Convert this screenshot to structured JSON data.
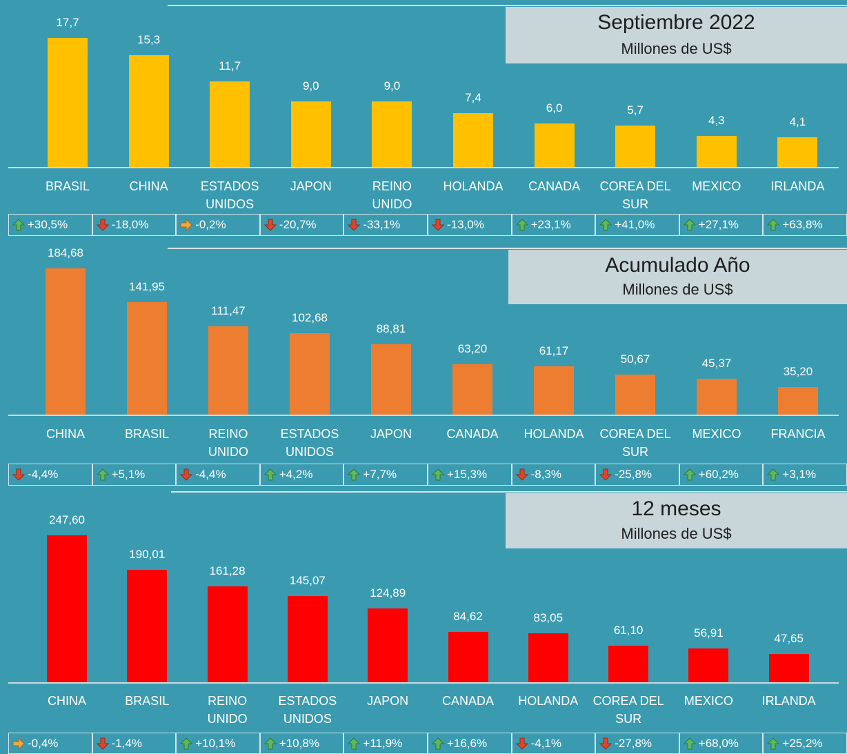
{
  "chart_data": [
    {
      "type": "bar",
      "title": "Septiembre 2022",
      "subtitle": "Millones de US$",
      "categories": [
        "BRASIL",
        "CHINA",
        "ESTADOS UNIDOS",
        "JAPON",
        "REINO UNIDO",
        "HOLANDA",
        "CANADA",
        "COREA DEL SUR",
        "MEXICO",
        "IRLANDA"
      ],
      "values": [
        17.7,
        15.3,
        11.7,
        9.0,
        9.0,
        7.4,
        6.0,
        5.7,
        4.3,
        4.1
      ],
      "value_labels": [
        "17,7",
        "15,3",
        "11,7",
        "9,0",
        "9,0",
        "7,4",
        "6,0",
        "5,7",
        "4,3",
        "4,1"
      ],
      "color": "#ffc000",
      "changes": [
        30.5,
        -18.0,
        -0.2,
        -20.7,
        -33.1,
        -13.0,
        23.1,
        41.0,
        27.1,
        63.8
      ],
      "change_labels": [
        "+30,5%",
        "-18,0%",
        "-0,2%",
        "-20,7%",
        "-33,1%",
        "-13,0%",
        "+23,1%",
        "+41,0%",
        "+27,1%",
        "+63,8%"
      ],
      "change_trends": [
        "up",
        "down",
        "flat",
        "down",
        "down",
        "down",
        "up",
        "up",
        "up",
        "up"
      ]
    },
    {
      "type": "bar",
      "title": "Acumulado Año",
      "subtitle": "Millones de US$",
      "categories": [
        "CHINA",
        "BRASIL",
        "REINO UNIDO",
        "ESTADOS UNIDOS",
        "JAPON",
        "CANADA",
        "HOLANDA",
        "COREA DEL SUR",
        "MEXICO",
        "FRANCIA"
      ],
      "values": [
        184.68,
        141.95,
        111.47,
        102.68,
        88.81,
        63.2,
        61.17,
        50.67,
        45.37,
        35.2
      ],
      "value_labels": [
        "184,68",
        "141,95",
        "111,47",
        "102,68",
        "88,81",
        "63,20",
        "61,17",
        "50,67",
        "45,37",
        "35,20"
      ],
      "color": "#ed7d31",
      "changes": [
        -4.4,
        5.1,
        -4.4,
        4.2,
        7.7,
        15.3,
        -8.3,
        -25.8,
        60.2,
        3.1
      ],
      "change_labels": [
        "-4,4%",
        "+5,1%",
        "-4,4%",
        "+4,2%",
        "+7,7%",
        "+15,3%",
        "-8,3%",
        "-25,8%",
        "+60,2%",
        "+3,1%"
      ],
      "change_trends": [
        "down",
        "up",
        "down",
        "up",
        "up",
        "up",
        "down",
        "down",
        "up",
        "up"
      ]
    },
    {
      "type": "bar",
      "title": "12 meses",
      "subtitle": "Millones de US$",
      "categories": [
        "CHINA",
        "BRASIL",
        "REINO UNIDO",
        "ESTADOS UNIDOS",
        "JAPON",
        "CANADA",
        "HOLANDA",
        "COREA DEL SUR",
        "MEXICO",
        "IRLANDA"
      ],
      "values": [
        247.6,
        190.01,
        161.28,
        145.07,
        124.89,
        84.62,
        83.05,
        61.1,
        56.91,
        47.65
      ],
      "value_labels": [
        "247,60",
        "190,01",
        "161,28",
        "145,07",
        "124,89",
        "84,62",
        "83,05",
        "61,10",
        "56,91",
        "47,65"
      ],
      "color": "#ff0000",
      "changes": [
        -0.4,
        -1.4,
        10.1,
        10.8,
        11.9,
        16.6,
        -4.1,
        -27.8,
        68.0,
        25.2
      ],
      "change_labels": [
        "-0,4%",
        "-1,4%",
        "+10,1%",
        "+10,8%",
        "+11,9%",
        "+16,6%",
        "-4,1%",
        "-27,8%",
        "+68,0%",
        "+25,2%"
      ],
      "change_trends": [
        "flat",
        "down",
        "up",
        "up",
        "up",
        "up",
        "down",
        "down",
        "up",
        "up"
      ]
    }
  ]
}
